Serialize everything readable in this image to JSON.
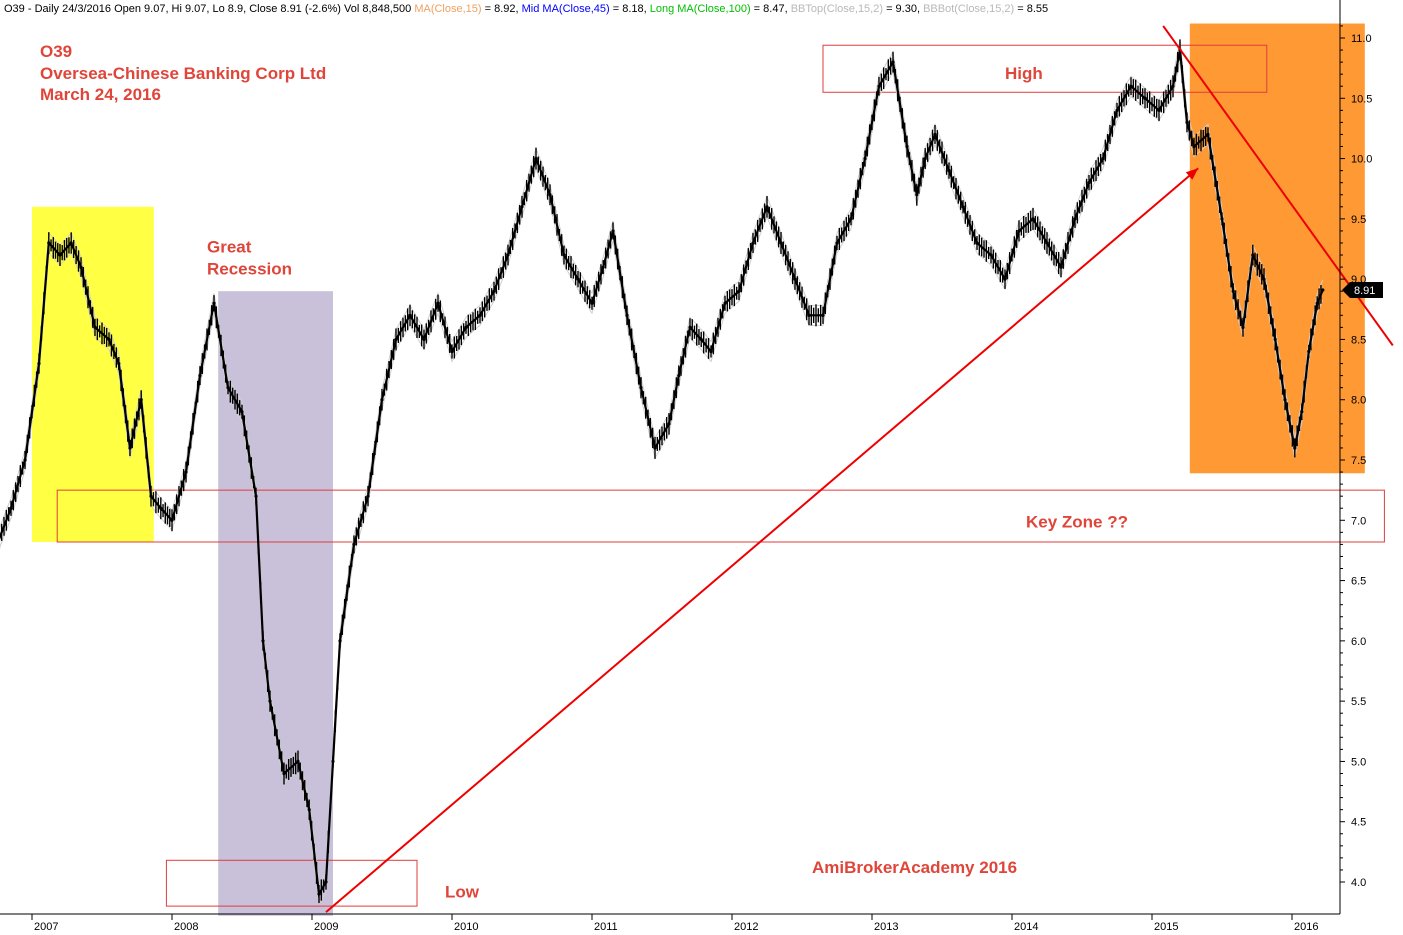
{
  "header": {
    "segments": [
      {
        "text": "O39 - Daily 24/3/2016 Open 9.07, Hi 9.07, Lo 8.9, Close 8.91 (-2.6%) Vol 8,848,500 ",
        "color": "#000000"
      },
      {
        "text": "MA(Close,15)",
        "color": "#f0a060"
      },
      {
        "text": " = 8.92, ",
        "color": "#000000"
      },
      {
        "text": "Mid MA(Close,45)",
        "color": "#0000ff"
      },
      {
        "text": " = 8.18, ",
        "color": "#000000"
      },
      {
        "text": "Long MA(Close,100)",
        "color": "#00c000"
      },
      {
        "text": " = 8.47, ",
        "color": "#000000"
      },
      {
        "text": "BBTop(Close,15,2)",
        "color": "#b8b8b8"
      },
      {
        "text": " = 9.30, ",
        "color": "#000000"
      },
      {
        "text": "BBBot(Close,15,2)",
        "color": "#b8b8b8"
      },
      {
        "text": " = 8.55",
        "color": "#000000"
      }
    ]
  },
  "chart_data": {
    "type": "line",
    "ticker": "O39",
    "title_lines": [
      "O39",
      "Oversea-Chinese Banking Corp Ltd",
      "March 24, 2016"
    ],
    "watermark": "AmiBrokerAcademy   2016",
    "last_price_label": "8.91",
    "y_ticks": [
      "4.0",
      "4.5",
      "5.0",
      "5.5",
      "6.0",
      "6.5",
      "7.0",
      "7.5",
      "8.0",
      "8.5",
      "9.0",
      "9.5",
      "10.0",
      "10.5",
      "11.0"
    ],
    "ylim": [
      3.75,
      11.15
    ],
    "x_ticks": [
      "2007",
      "2008",
      "2009",
      "2010",
      "2011",
      "2012",
      "2013",
      "2014",
      "2015",
      "2016"
    ],
    "xlim": [
      2006.75,
      2016.3
    ],
    "price_series": {
      "name": "Close",
      "x": [
        2006.75,
        2006.85,
        2006.95,
        2007.05,
        2007.12,
        2007.2,
        2007.28,
        2007.35,
        2007.45,
        2007.55,
        2007.62,
        2007.7,
        2007.78,
        2007.85,
        2007.92,
        2008.0,
        2008.1,
        2008.2,
        2008.3,
        2008.4,
        2008.5,
        2008.6,
        2008.65,
        2008.7,
        2008.8,
        2008.9,
        2008.98,
        2009.05,
        2009.1,
        2009.15,
        2009.2,
        2009.3,
        2009.4,
        2009.5,
        2009.6,
        2009.7,
        2009.8,
        2009.9,
        2010.0,
        2010.1,
        2010.2,
        2010.3,
        2010.4,
        2010.5,
        2010.6,
        2010.7,
        2010.8,
        2010.9,
        2011.0,
        2011.08,
        2011.15,
        2011.25,
        2011.35,
        2011.45,
        2011.55,
        2011.62,
        2011.7,
        2011.78,
        2011.85,
        2011.95,
        2012.05,
        2012.15,
        2012.25,
        2012.35,
        2012.45,
        2012.55,
        2012.65,
        2012.75,
        2012.85,
        2012.95,
        2013.05,
        2013.15,
        2013.25,
        2013.32,
        2013.38,
        2013.45,
        2013.55,
        2013.65,
        2013.75,
        2013.85,
        2013.95,
        2014.05,
        2014.15,
        2014.25,
        2014.35,
        2014.45,
        2014.55,
        2014.65,
        2014.75,
        2014.85,
        2014.95,
        2015.05,
        2015.15,
        2015.2,
        2015.25,
        2015.3,
        2015.4,
        2015.5,
        2015.58,
        2015.65,
        2015.72,
        2015.8,
        2015.88,
        2015.95,
        2016.02,
        2016.07,
        2016.12,
        2016.18,
        2016.22
      ],
      "values": [
        6.8,
        7.1,
        7.5,
        8.3,
        9.3,
        9.2,
        9.3,
        9.1,
        8.6,
        8.5,
        8.3,
        7.6,
        8.0,
        7.2,
        7.1,
        7.0,
        7.4,
        8.2,
        8.8,
        8.1,
        7.9,
        7.2,
        6.0,
        5.5,
        4.9,
        5.0,
        4.6,
        3.9,
        4.0,
        5.0,
        6.0,
        6.8,
        7.2,
        8.0,
        8.5,
        8.7,
        8.5,
        8.8,
        8.4,
        8.6,
        8.7,
        8.9,
        9.2,
        9.6,
        10.0,
        9.7,
        9.2,
        9.0,
        8.8,
        9.1,
        9.4,
        8.7,
        8.1,
        7.6,
        7.8,
        8.2,
        8.6,
        8.5,
        8.4,
        8.8,
        8.9,
        9.3,
        9.6,
        9.3,
        9.0,
        8.7,
        8.7,
        9.3,
        9.5,
        10.0,
        10.6,
        10.8,
        10.1,
        9.7,
        10.0,
        10.2,
        9.9,
        9.6,
        9.3,
        9.2,
        9.0,
        9.4,
        9.5,
        9.3,
        9.1,
        9.5,
        9.8,
        10.0,
        10.4,
        10.6,
        10.5,
        10.4,
        10.6,
        10.9,
        10.3,
        10.1,
        10.2,
        9.5,
        8.9,
        8.6,
        9.2,
        9.0,
        8.5,
        8.0,
        7.6,
        7.9,
        8.4,
        8.8,
        8.91
      ]
    },
    "annotations": [
      {
        "kind": "label",
        "text": "Great",
        "x": 2008.25,
        "y": 9.27
      },
      {
        "kind": "label",
        "text": "Recession",
        "x": 2008.25,
        "y": 9.09
      },
      {
        "kind": "label",
        "text": "High",
        "x": 2013.95,
        "y": 10.71
      },
      {
        "kind": "label",
        "text": "Key Zone ??",
        "x": 2014.1,
        "y": 6.99
      },
      {
        "kind": "label",
        "text": "Low",
        "x": 2009.95,
        "y": 3.92
      }
    ],
    "shaded_regions": [
      {
        "name": "yellow-box",
        "x0": 2007.0,
        "x1": 2007.87,
        "y0": 6.82,
        "y1": 9.6,
        "color": "#ffff44"
      },
      {
        "name": "recession-box",
        "x0": 2008.33,
        "x1": 2009.15,
        "y0": 3.72,
        "y1": 8.9,
        "color": "#c9c0d9"
      },
      {
        "name": "orange-box",
        "x0": 2015.27,
        "x1": 2016.52,
        "y0": 7.39,
        "y1": 11.12,
        "color": "#ff9933"
      }
    ],
    "outlined_zones": [
      {
        "name": "high-zone",
        "x0": 2012.65,
        "x1": 2015.82,
        "y0": 10.55,
        "y1": 10.94
      },
      {
        "name": "key-zone",
        "x0": 2007.18,
        "x1": 2016.66,
        "y0": 6.82,
        "y1": 7.25
      },
      {
        "name": "low-zone",
        "x0": 2007.96,
        "x1": 2009.75,
        "y0": 3.8,
        "y1": 4.18
      }
    ],
    "trend_lines": [
      {
        "name": "uptrend-line",
        "x0": 2009.1,
        "y0": 3.75,
        "x1": 2015.33,
        "y1": 9.92
      },
      {
        "name": "downtrend-line",
        "x0": 2015.08,
        "y0": 11.1,
        "x1": 2016.72,
        "y1": 8.45
      }
    ],
    "trend_arrows": [
      {
        "name": "uptrend-arrow",
        "x": 2015.33,
        "y": 9.92
      }
    ],
    "colors": {
      "price": "#000000",
      "band": "#cfcfcf",
      "annotation": "#e0453a",
      "trend": "#ee0000",
      "zone_stroke": "#e03c3c"
    },
    "grid": false
  }
}
